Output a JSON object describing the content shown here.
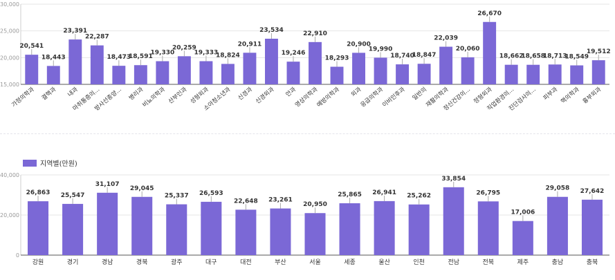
{
  "colors": {
    "bar": "#7b68d6",
    "axis": "#555555",
    "grid": "#e6e6e6",
    "tick": "#999999",
    "label": "#333333",
    "whisker": "#aaaaaa"
  },
  "chart_data": [
    {
      "type": "bar",
      "title": "",
      "ylim": [
        15000,
        30000
      ],
      "yticks": [
        15000,
        20000,
        25000,
        30000
      ],
      "ytick_labels": [
        "15,000",
        "20,000",
        "25,000",
        "30,000"
      ],
      "grid": true,
      "legend": null,
      "categories": [
        "가정의학과",
        "결핵과",
        "내과",
        "마취통증의...",
        "방사선종양...",
        "병리과",
        "비뇨의학과",
        "산부인과",
        "성형외과",
        "소아청소년과",
        "신경과",
        "신경외과",
        "안과",
        "영상의학과",
        "예방의학과",
        "외과",
        "응급의학과",
        "이비인후과",
        "일반의",
        "재활의학과",
        "정신건강의...",
        "정형외과",
        "직업환경의...",
        "진단검사의...",
        "피부과",
        "핵의학과",
        "흉부외과"
      ],
      "values": [
        20541,
        18443,
        23391,
        22287,
        18473,
        18591,
        19330,
        20259,
        19333,
        18824,
        20911,
        23534,
        19246,
        22910,
        18293,
        20900,
        19990,
        18740,
        18847,
        22039,
        20060,
        26670,
        18662,
        18658,
        18713,
        18549,
        19512
      ],
      "value_labels": [
        "20,541",
        "18,443",
        "23,391",
        "22,287",
        "18,473",
        "18,591",
        "19,330",
        "20,259",
        "19,333",
        "18,824",
        "20,911",
        "23,534",
        "19,246",
        "22,910",
        "18,293",
        "20,900",
        "19,990",
        "18,740",
        "18,847",
        "22,039",
        "20,060",
        "26,670",
        "18,662",
        "18,658",
        "18,713",
        "18,549",
        "19,512"
      ]
    },
    {
      "type": "bar",
      "title": "",
      "ylim": [
        0,
        40000
      ],
      "yticks": [
        0,
        20000,
        40000
      ],
      "ytick_labels": [
        "0",
        "20,000",
        "40,000"
      ],
      "grid": true,
      "legend": {
        "position": "top-left",
        "entries": [
          "지역별(만원)"
        ]
      },
      "series": [
        {
          "name": "지역별(만원)"
        }
      ],
      "categories": [
        "강원",
        "경기",
        "경남",
        "경북",
        "광주",
        "대구",
        "대전",
        "부산",
        "서울",
        "세종",
        "울산",
        "인천",
        "전남",
        "전북",
        "제주",
        "충남",
        "충북"
      ],
      "values": [
        26863,
        25547,
        31107,
        29045,
        25337,
        26593,
        22648,
        23261,
        20950,
        25865,
        26941,
        25262,
        33854,
        26795,
        17006,
        29058,
        27642
      ],
      "value_labels": [
        "26,863",
        "25,547",
        "31,107",
        "29,045",
        "25,337",
        "26,593",
        "22,648",
        "23,261",
        "20,950",
        "25,865",
        "26,941",
        "25,262",
        "33,854",
        "26,795",
        "17,006",
        "29,058",
        "27,642"
      ]
    }
  ]
}
